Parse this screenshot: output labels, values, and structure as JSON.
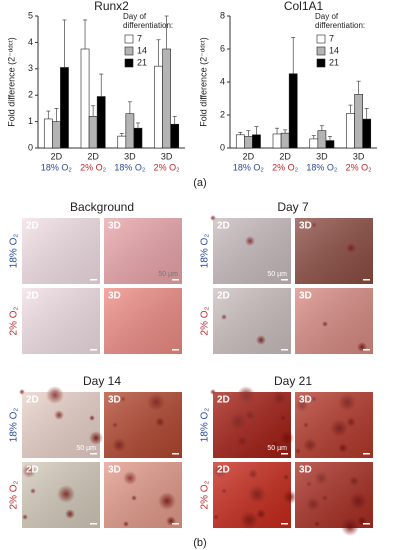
{
  "chart_data": [
    {
      "type": "bar",
      "title": "Runx2",
      "y_label": "Fold difference (2⁻ᵈᵈᶜᵗ)",
      "categories": [
        "2D",
        "2D",
        "3D",
        "3D"
      ],
      "category_sublabels": [
        "18% O₂",
        "2% O₂",
        "18% O₂",
        "2% O₂"
      ],
      "category_sublabel_colors": [
        "#2a4a9a",
        "#c0282a",
        "#2a4a9a",
        "#c0282a"
      ],
      "legend_title": "Day of differentiation:",
      "legend": "upper right",
      "series": [
        {
          "name": "7",
          "color": "#ffffff",
          "values": [
            1.1,
            3.75,
            0.45,
            3.1
          ],
          "errors": [
            0.3,
            1.1,
            0.1,
            1.0
          ]
        },
        {
          "name": "14",
          "color": "#b4b4b4",
          "values": [
            1.0,
            1.2,
            1.3,
            3.75
          ],
          "errors": [
            0.5,
            0.4,
            0.45,
            1.25
          ]
        },
        {
          "name": "21",
          "color": "#000000",
          "values": [
            3.05,
            1.95,
            0.75,
            0.9
          ],
          "errors": [
            1.8,
            0.85,
            0.2,
            0.3
          ]
        }
      ],
      "ylim": [
        0,
        5
      ],
      "yticks": [
        0,
        1,
        2,
        3,
        4,
        5
      ]
    },
    {
      "type": "bar",
      "title": "Col1A1",
      "y_label": "Fold difference (2⁻ᵈᵈᶜᵗ)",
      "categories": [
        "2D",
        "2D",
        "3D",
        "3D"
      ],
      "category_sublabels": [
        "18% O₂",
        "2% O₂",
        "18% O₂",
        "2% O₂"
      ],
      "category_sublabel_colors": [
        "#2a4a9a",
        "#c0282a",
        "#2a4a9a",
        "#c0282a"
      ],
      "legend_title": "Day of differentiation:",
      "legend": "upper right",
      "series": [
        {
          "name": "7",
          "color": "#ffffff",
          "values": [
            0.8,
            0.85,
            0.55,
            2.1
          ],
          "errors": [
            0.15,
            0.35,
            0.2,
            0.5
          ]
        },
        {
          "name": "14",
          "color": "#b4b4b4",
          "values": [
            0.7,
            0.9,
            1.05,
            3.25
          ],
          "errors": [
            0.35,
            0.2,
            0.3,
            0.8
          ]
        },
        {
          "name": "21",
          "color": "#000000",
          "values": [
            0.8,
            4.5,
            0.45,
            1.75
          ],
          "errors": [
            0.5,
            2.2,
            0.25,
            0.65
          ]
        }
      ],
      "ylim": [
        0,
        8
      ],
      "yticks": [
        0,
        2,
        4,
        6,
        8
      ]
    }
  ],
  "panel_labels": [
    "(a)",
    "(b)"
  ],
  "micrographs": [
    {
      "title": "Background",
      "rows": [
        "18% O₂",
        "2% O₂"
      ],
      "row_colors": [
        "#2a4a9a",
        "#c0282a"
      ],
      "columns": [
        "2D",
        "3D"
      ],
      "scale_bar": "50 µm"
    },
    {
      "title": "Day 7",
      "rows": [
        "18% O₂",
        "2% O₂"
      ],
      "row_colors": [
        "#2a4a9a",
        "#c0282a"
      ],
      "columns": [
        "2D",
        "3D"
      ],
      "scale_bar": "50 µm"
    },
    {
      "title": "Day 14",
      "rows": [
        "18% O₂",
        "2% O₂"
      ],
      "row_colors": [
        "#2a4a9a",
        "#c0282a"
      ],
      "columns": [
        "2D",
        "3D"
      ],
      "scale_bar": "50 µm"
    },
    {
      "title": "Day 21",
      "rows": [
        "18% O₂",
        "2% O₂"
      ],
      "row_colors": [
        "#2a4a9a",
        "#c0282a"
      ],
      "columns": [
        "2D",
        "3D"
      ],
      "scale_bar": "50 µm"
    }
  ]
}
